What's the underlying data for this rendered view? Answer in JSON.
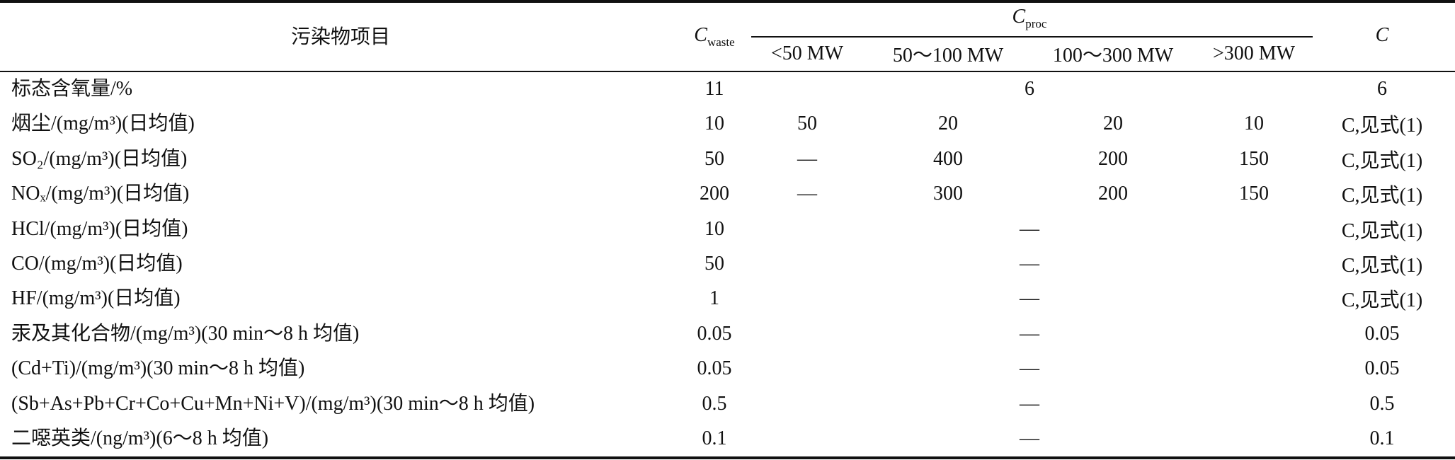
{
  "header": {
    "item": "污染物项目",
    "c_waste": {
      "symbol": "C",
      "subscript": "waste"
    },
    "c_proc": {
      "symbol": "C",
      "subscript": "proc"
    },
    "proc_columns": [
      "<50 MW",
      "50～100 MW",
      "100～300 MW",
      ">300 MW"
    ],
    "c": "C"
  },
  "rows": [
    {
      "item": "标态含氧量/%",
      "c_waste": "11",
      "c_proc": "6",
      "c": "6"
    },
    {
      "item": "烟尘/(mg/m³)(日均值)",
      "c_waste": "10",
      "c_proc": [
        "50",
        "20",
        "20",
        "10"
      ],
      "c": "C,见式(1)"
    },
    {
      "item": "SO₂/(mg/m³)(日均值)",
      "c_waste": "50",
      "c_proc": [
        "—",
        "400",
        "200",
        "150"
      ],
      "c": "C,见式(1)"
    },
    {
      "item": "NOₓ/(mg/m³)(日均值)",
      "c_waste": "200",
      "c_proc": [
        "—",
        "300",
        "200",
        "150"
      ],
      "c": "C,见式(1)"
    },
    {
      "item": "HCl/(mg/m³)(日均值)",
      "c_waste": "10",
      "c_proc": "—",
      "c": "C,见式(1)"
    },
    {
      "item": "CO/(mg/m³)(日均值)",
      "c_waste": "50",
      "c_proc": "—",
      "c": "C,见式(1)"
    },
    {
      "item": "HF/(mg/m³)(日均值)",
      "c_waste": "1",
      "c_proc": "—",
      "c": "C,见式(1)"
    },
    {
      "item": "汞及其化合物/(mg/m³)(30 min～8 h 均值)",
      "c_waste": "0.05",
      "c_proc": "—",
      "c": "0.05"
    },
    {
      "item": "(Cd+Ti)/(mg/m³)(30 min～8 h 均值)",
      "c_waste": "0.05",
      "c_proc": "—",
      "c": "0.05"
    },
    {
      "item": "(Sb+As+Pb+Cr+Co+Cu+Mn+Ni+V)/(mg/m³)(30 min～8 h 均值)",
      "c_waste": "0.5",
      "c_proc": "—",
      "c": "0.5"
    },
    {
      "item": "二噁英类/(ng/m³)(6～8 h 均值)",
      "c_waste": "0.1",
      "c_proc": "—",
      "c": "0.1"
    }
  ]
}
